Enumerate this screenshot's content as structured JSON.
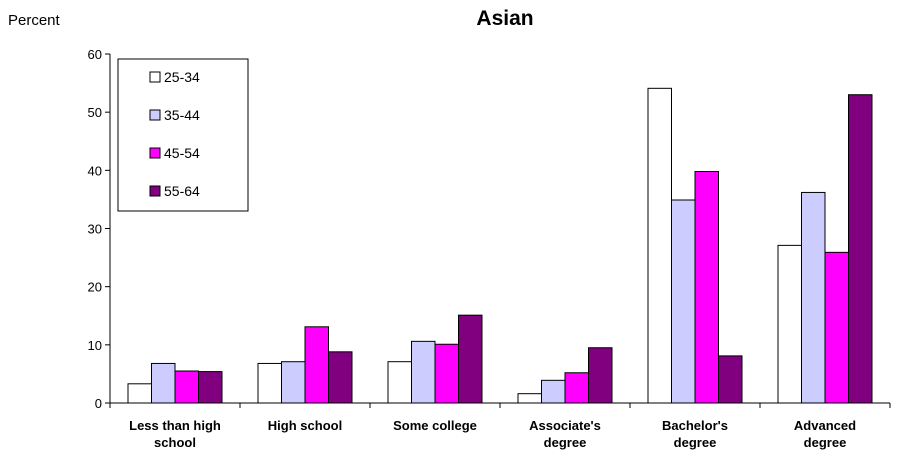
{
  "chart_data": {
    "type": "bar",
    "title": "Asian",
    "ylabel": "Percent",
    "xlabel": "",
    "ylim": [
      0,
      60
    ],
    "yticks": [
      0,
      10,
      20,
      30,
      40,
      50,
      60
    ],
    "grid": false,
    "legend_position": "top-left",
    "categories": [
      [
        "Less than high",
        "school"
      ],
      [
        "High school"
      ],
      [
        "Some college"
      ],
      [
        "Associate's",
        "degree"
      ],
      [
        "Bachelor's",
        "degree"
      ],
      [
        "Advanced",
        "degree"
      ]
    ],
    "series": [
      {
        "name": "25-34",
        "color": "#ffffff",
        "values": [
          3.3,
          6.8,
          7.1,
          1.6,
          54.1,
          27.1
        ]
      },
      {
        "name": "35-44",
        "color": "#ccccff",
        "values": [
          6.8,
          7.1,
          10.6,
          3.9,
          34.9,
          36.2
        ]
      },
      {
        "name": "45-54",
        "color": "#ff00ff",
        "values": [
          5.5,
          13.1,
          10.1,
          5.2,
          39.8,
          25.9
        ]
      },
      {
        "name": "55-64",
        "color": "#800080",
        "values": [
          5.4,
          8.8,
          15.1,
          9.5,
          8.1,
          53.0
        ]
      }
    ]
  }
}
